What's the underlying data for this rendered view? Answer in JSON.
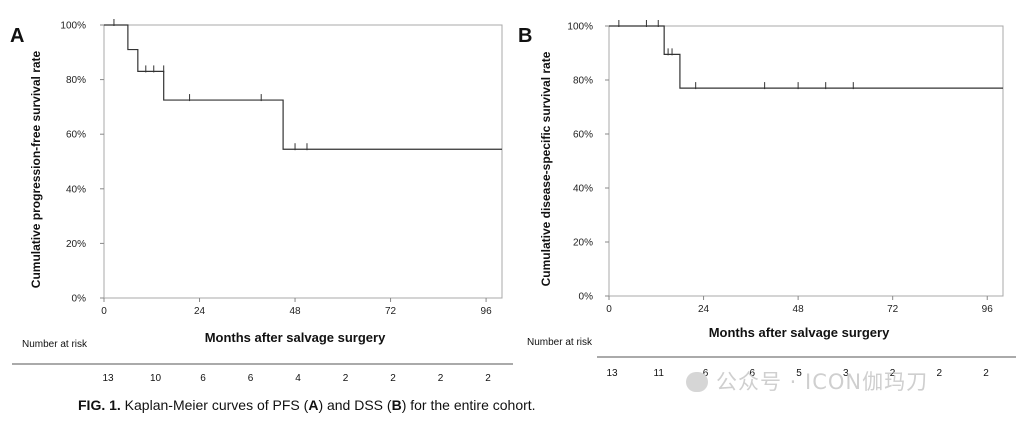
{
  "chart_data": [
    {
      "type": "line",
      "panel_label": "A",
      "xlabel": "Months after salvage surgery",
      "ylabel": "Cumulative progression-free survival rate",
      "xlim": [
        0,
        100
      ],
      "ylim": [
        0,
        1
      ],
      "xticks": [
        0,
        24,
        48,
        72,
        96
      ],
      "yticks": [
        "0%",
        "20%",
        "40%",
        "60%",
        "80%",
        "100%"
      ],
      "grid": false,
      "steps": [
        {
          "x": 0,
          "y": 1.0
        },
        {
          "x": 6,
          "y": 0.91
        },
        {
          "x": 8.5,
          "y": 0.83
        },
        {
          "x": 15,
          "y": 0.725
        },
        {
          "x": 45,
          "y": 0.545
        },
        {
          "x": 100,
          "y": 0.545
        }
      ],
      "censored": [
        {
          "x": 2.5,
          "y": 1.0
        },
        {
          "x": 10.5,
          "y": 0.83
        },
        {
          "x": 12.5,
          "y": 0.83
        },
        {
          "x": 15,
          "y": 0.83
        },
        {
          "x": 21.5,
          "y": 0.725
        },
        {
          "x": 39.5,
          "y": 0.725
        },
        {
          "x": 48,
          "y": 0.545
        },
        {
          "x": 51,
          "y": 0.545
        }
      ],
      "risk_label": "Number at risk",
      "risk_counts": [
        "13",
        "10",
        "6",
        "6",
        "4",
        "2",
        "2",
        "2",
        "2"
      ]
    },
    {
      "type": "line",
      "panel_label": "B",
      "xlabel": "Months after salvage surgery",
      "ylabel": "Cumulative disease-specific survival rate",
      "xlim": [
        0,
        100
      ],
      "ylim": [
        0,
        1
      ],
      "xticks": [
        0,
        24,
        48,
        72,
        96
      ],
      "yticks": [
        "0%",
        "20%",
        "40%",
        "60%",
        "80%",
        "100%"
      ],
      "grid": false,
      "steps": [
        {
          "x": 0,
          "y": 1.0
        },
        {
          "x": 14,
          "y": 0.895
        },
        {
          "x": 18,
          "y": 0.77
        },
        {
          "x": 100,
          "y": 0.77
        }
      ],
      "censored": [
        {
          "x": 2.5,
          "y": 1.0
        },
        {
          "x": 9.5,
          "y": 1.0
        },
        {
          "x": 12.5,
          "y": 1.0
        },
        {
          "x": 15,
          "y": 0.895
        },
        {
          "x": 16,
          "y": 0.895
        },
        {
          "x": 22,
          "y": 0.77
        },
        {
          "x": 39.5,
          "y": 0.77
        },
        {
          "x": 48,
          "y": 0.77
        },
        {
          "x": 55,
          "y": 0.77
        },
        {
          "x": 62,
          "y": 0.77
        }
      ],
      "risk_label": "Number at risk",
      "risk_counts": [
        "13",
        "11",
        "6",
        "6",
        "5",
        "3",
        "2",
        "2",
        "2"
      ]
    }
  ],
  "caption": {
    "bold_prefix": "FIG. 1.",
    "text_1": " Kaplan-Meier curves of PFS (",
    "label_a": "A",
    "text_2": ") and DSS (",
    "label_b": "B",
    "text_3": ") for the entire cohort."
  },
  "watermark": {
    "text": "公众号 · ICON伽玛刀"
  }
}
